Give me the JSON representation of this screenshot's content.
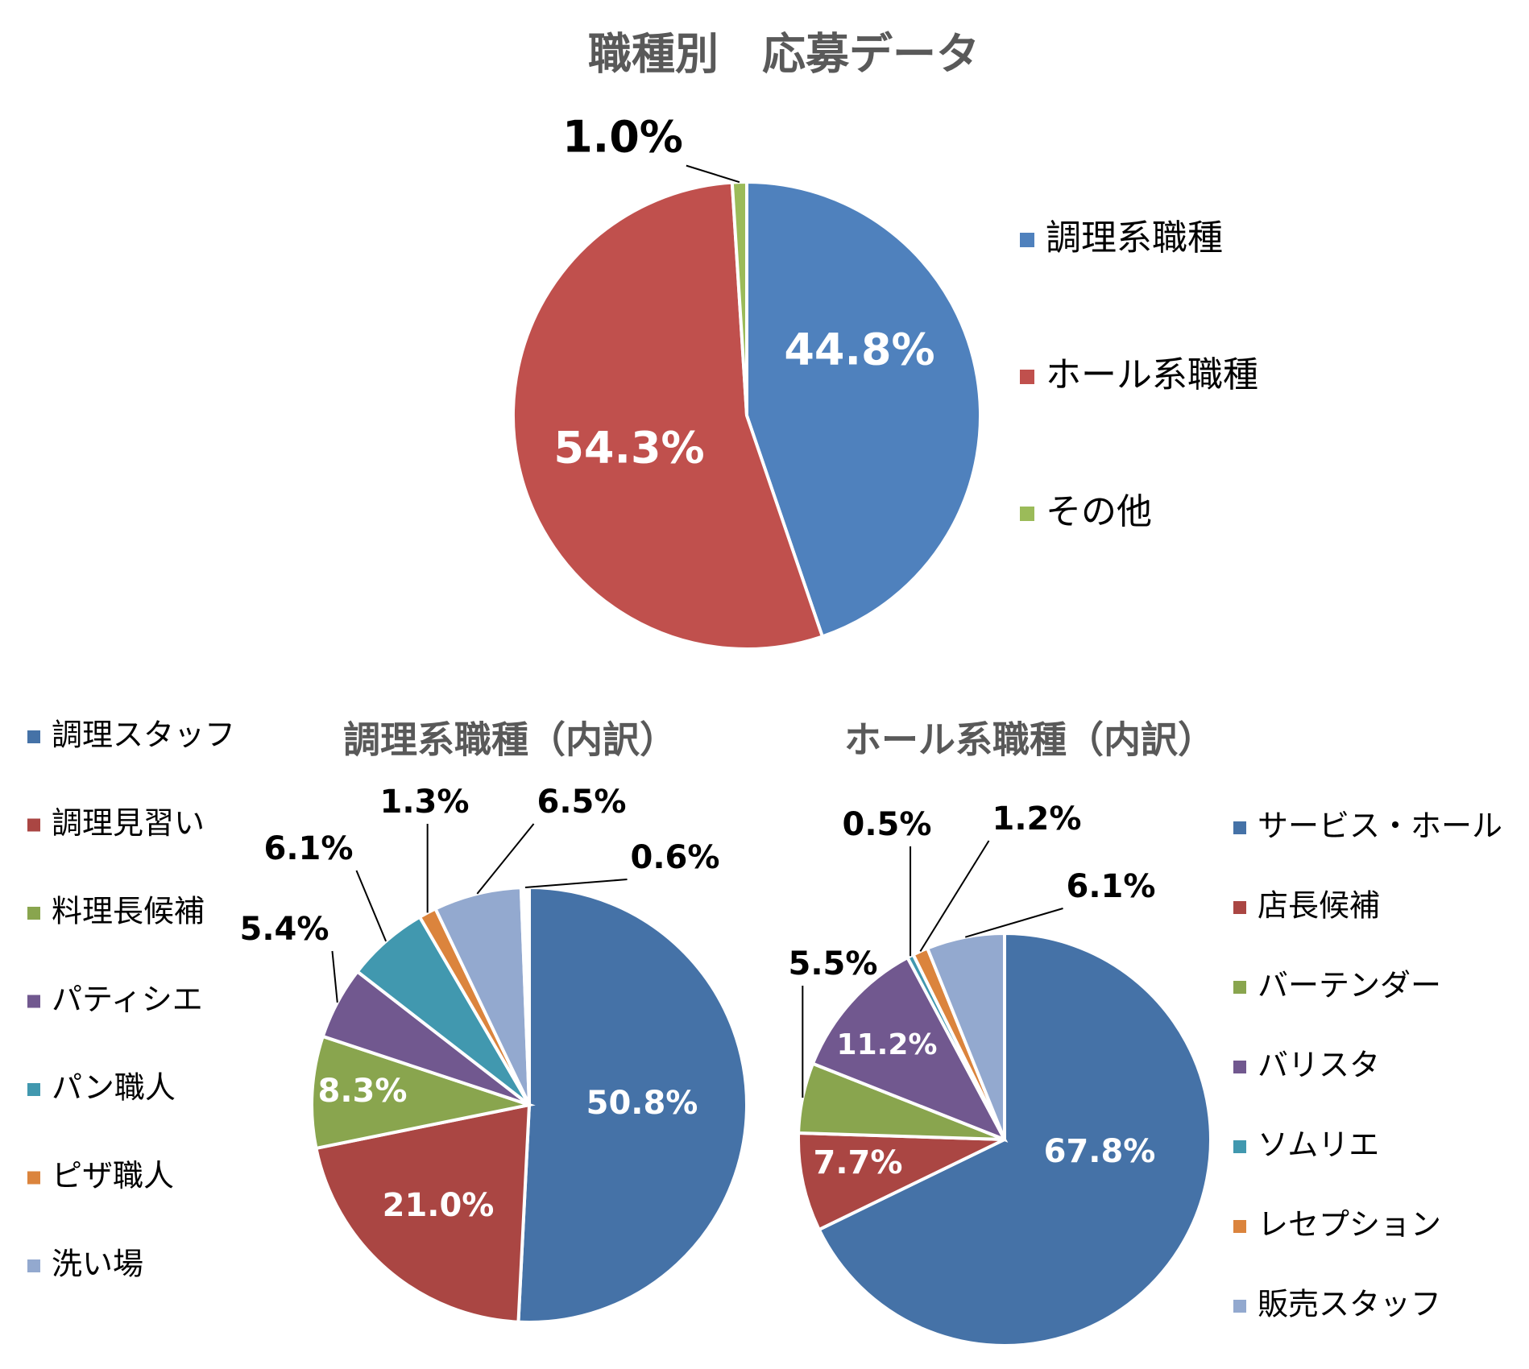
{
  "chart_data": [
    {
      "type": "pie",
      "title": "職種別　応募データ",
      "categories": [
        "調理系職種",
        "ホール系職種",
        "その他"
      ],
      "values": [
        44.8,
        54.3,
        1.0
      ],
      "value_labels": [
        "44.8%",
        "54.3%",
        "1.0%"
      ],
      "colors": [
        "#4f81bd",
        "#c0504d",
        "#9bbb59"
      ],
      "legend": "right"
    },
    {
      "type": "pie",
      "title": "調理系職種（内訳）",
      "categories": [
        "調理スタッフ",
        "調理見習い",
        "料理長候補",
        "パティシエ",
        "パン職人",
        "ピザ職人",
        "洗い場",
        null
      ],
      "values": [
        50.8,
        21.0,
        8.3,
        5.4,
        6.1,
        1.3,
        6.5,
        0.6
      ],
      "value_labels": [
        "50.8%",
        "21.0%",
        "8.3%",
        "5.4%",
        "6.1%",
        "1.3%",
        "6.5%",
        "0.6%"
      ],
      "colors": [
        "#4572a7",
        "#aa4643",
        "#89a54e",
        "#71588f",
        "#4198af",
        "#db843d",
        "#93a9cf",
        "#ffffff"
      ],
      "legend": "left"
    },
    {
      "type": "pie",
      "title": "ホール系職種（内訳）",
      "categories": [
        "サービス・ホール",
        "店長候補",
        "バーテンダー",
        "バリスタ",
        "ソムリエ",
        "レセプション",
        "販売スタッフ"
      ],
      "values": [
        67.8,
        7.7,
        5.5,
        11.2,
        0.5,
        1.2,
        6.1
      ],
      "value_labels": [
        "67.8%",
        "7.7%",
        "5.5%",
        "11.2%",
        "0.5%",
        "1.2%",
        "6.1%"
      ],
      "colors": [
        "#4572a7",
        "#aa4643",
        "#89a54e",
        "#71588f",
        "#4198af",
        "#db843d",
        "#93a9cf"
      ],
      "legend": "right"
    }
  ]
}
